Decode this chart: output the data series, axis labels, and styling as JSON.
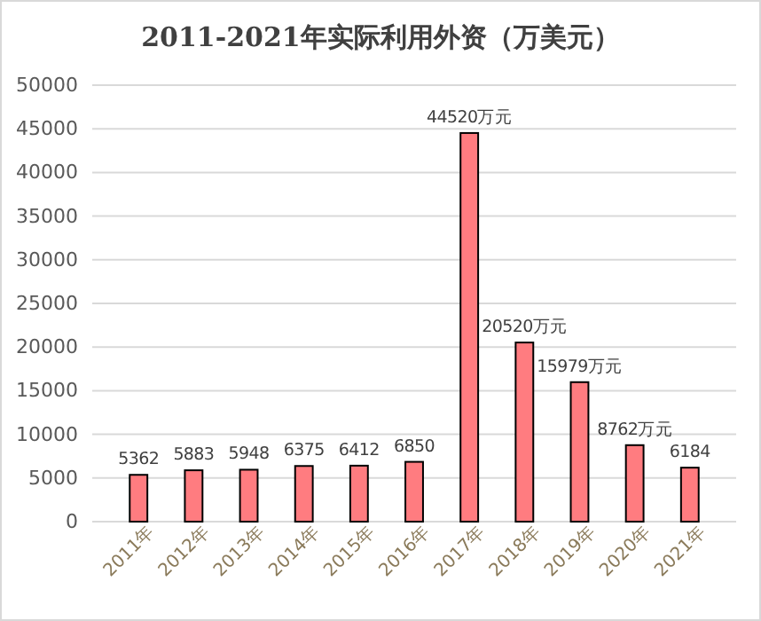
{
  "chart_data": {
    "type": "bar",
    "title": "2011-2021年实际利用外资（万美元）",
    "categories": [
      "2011年",
      "2012年",
      "2013年",
      "2014年",
      "2015年",
      "2016年",
      "2017年",
      "2018年",
      "2019年",
      "2020年",
      "2021年"
    ],
    "values": [
      5362,
      5883,
      5948,
      6375,
      6412,
      6850,
      44520,
      20520,
      15979,
      8762,
      6184
    ],
    "value_labels": [
      "5362",
      "5883",
      "5948",
      "6375",
      "6412",
      "6850",
      "44520万元",
      "20520万元",
      "15979万元",
      "8762万元",
      "6184"
    ],
    "color": "#ff7c80",
    "ylim": [
      0,
      50000
    ],
    "yticks": [
      0,
      5000,
      10000,
      15000,
      20000,
      25000,
      30000,
      35000,
      40000,
      45000,
      50000
    ],
    "grid": "y"
  }
}
